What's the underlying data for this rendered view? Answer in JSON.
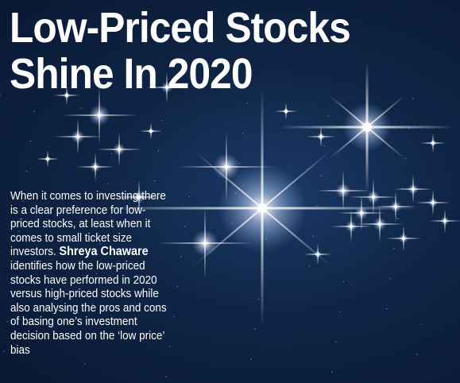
{
  "headline": {
    "line1": "Low-Priced Stocks",
    "line2": "Shine In 2020"
  },
  "intro": {
    "text_before": "When it comes to investing there is a clear preference for low-priced stocks, at least when it comes to small ticket size investors. ",
    "author": "Shreya Chaware",
    "text_after": " identifies how the low-priced stocks have performed in 2020 versus high-priced stocks while also analysing the pros and cons of basing one’s investment decision based on the ‘low price’ bias"
  },
  "colors": {
    "background": "#0f2546",
    "text": "#ffffff",
    "star": "#ffffff"
  }
}
